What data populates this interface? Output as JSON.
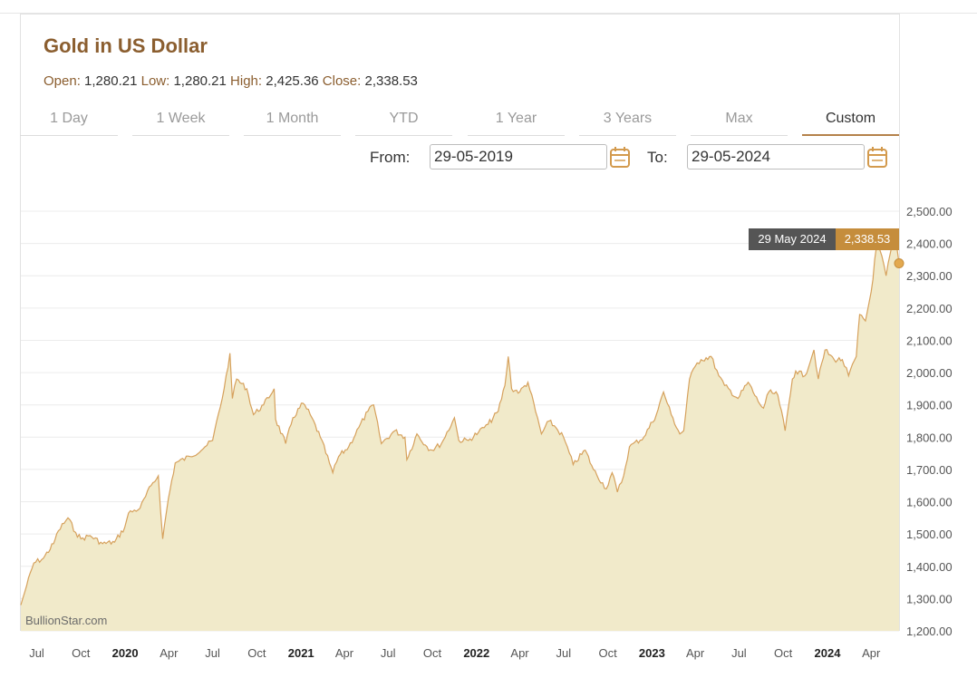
{
  "header": {
    "title": "Gold in US Dollar",
    "open_label": "Open:",
    "open": "1,280.21",
    "low_label": "Low:",
    "low": "1,280.21",
    "high_label": "High:",
    "high": "2,425.36",
    "close_label": "Close:",
    "close": "2,338.53"
  },
  "tabs": [
    {
      "label": "1 Day"
    },
    {
      "label": "1 Week"
    },
    {
      "label": "1 Month"
    },
    {
      "label": "YTD"
    },
    {
      "label": "1 Year"
    },
    {
      "label": "3 Years"
    },
    {
      "label": "Max"
    },
    {
      "label": "Custom",
      "active": true
    }
  ],
  "range": {
    "from_label": "From:",
    "from_value": "29-05-2019",
    "to_label": "To:",
    "to_value": "29-05-2024"
  },
  "tooltip": {
    "date": "29 May 2024",
    "value": "2,338.53"
  },
  "brand": "BullionStar.com",
  "colors": {
    "accent": "#b5824a",
    "line": "#d6a15c",
    "area": "#f1eaca",
    "title": "#8b5e2f"
  },
  "chart_data": {
    "type": "area",
    "title": "Gold in US Dollar",
    "ylim": [
      1200,
      2500
    ],
    "y_ticks": [
      "1,200.00",
      "1,300.00",
      "1,400.00",
      "1,500.00",
      "1,600.00",
      "1,700.00",
      "1,800.00",
      "1,900.00",
      "2,000.00",
      "2,100.00",
      "2,200.00",
      "2,300.00",
      "2,400.00",
      "2,500.00"
    ],
    "x_range": [
      "2019-05-29",
      "2024-05-29"
    ],
    "x_ticks": [
      {
        "date": "2019-07-01",
        "label": "Jul",
        "bold": false
      },
      {
        "date": "2019-10-01",
        "label": "Oct",
        "bold": false
      },
      {
        "date": "2020-01-01",
        "label": "2020",
        "bold": true
      },
      {
        "date": "2020-04-01",
        "label": "Apr",
        "bold": false
      },
      {
        "date": "2020-07-01",
        "label": "Jul",
        "bold": false
      },
      {
        "date": "2020-10-01",
        "label": "Oct",
        "bold": false
      },
      {
        "date": "2021-01-01",
        "label": "2021",
        "bold": true
      },
      {
        "date": "2021-04-01",
        "label": "Apr",
        "bold": false
      },
      {
        "date": "2021-07-01",
        "label": "Jul",
        "bold": false
      },
      {
        "date": "2021-10-01",
        "label": "Oct",
        "bold": false
      },
      {
        "date": "2022-01-01",
        "label": "2022",
        "bold": true
      },
      {
        "date": "2022-04-01",
        "label": "Apr",
        "bold": false
      },
      {
        "date": "2022-07-01",
        "label": "Jul",
        "bold": false
      },
      {
        "date": "2022-10-01",
        "label": "Oct",
        "bold": false
      },
      {
        "date": "2023-01-01",
        "label": "2023",
        "bold": true
      },
      {
        "date": "2023-04-01",
        "label": "Apr",
        "bold": false
      },
      {
        "date": "2023-07-01",
        "label": "Jul",
        "bold": false
      },
      {
        "date": "2023-10-01",
        "label": "Oct",
        "bold": false
      },
      {
        "date": "2024-01-01",
        "label": "2024",
        "bold": true
      },
      {
        "date": "2024-04-01",
        "label": "Apr",
        "bold": false
      }
    ],
    "grid": true,
    "series": [
      {
        "x": [
          "2019-05-29",
          "2019-06-10",
          "2019-06-25",
          "2019-07-15",
          "2019-08-05",
          "2019-08-15",
          "2019-09-04",
          "2019-09-20",
          "2019-10-01",
          "2019-10-20",
          "2019-11-15",
          "2019-12-10",
          "2019-12-31",
          "2020-01-08",
          "2020-02-01",
          "2020-02-24",
          "2020-03-10",
          "2020-03-19",
          "2020-03-31",
          "2020-04-14",
          "2020-05-15",
          "2020-06-15",
          "2020-07-01",
          "2020-07-25",
          "2020-08-06",
          "2020-08-11",
          "2020-08-20",
          "2020-09-10",
          "2020-09-24",
          "2020-10-15",
          "2020-11-06",
          "2020-11-09",
          "2020-11-30",
          "2020-12-15",
          "2021-01-05",
          "2021-01-20",
          "2021-02-10",
          "2021-03-01",
          "2021-03-08",
          "2021-03-20",
          "2021-04-10",
          "2021-05-01",
          "2021-05-20",
          "2021-06-01",
          "2021-06-17",
          "2021-07-15",
          "2021-08-05",
          "2021-08-09",
          "2021-08-30",
          "2021-09-20",
          "2021-09-30",
          "2021-10-20",
          "2021-11-16",
          "2021-11-25",
          "2021-12-15",
          "2022-01-05",
          "2022-01-25",
          "2022-02-15",
          "2022-03-01",
          "2022-03-08",
          "2022-03-15",
          "2022-04-01",
          "2022-04-18",
          "2022-05-16",
          "2022-06-01",
          "2022-06-15",
          "2022-07-01",
          "2022-07-21",
          "2022-08-15",
          "2022-09-01",
          "2022-09-28",
          "2022-10-10",
          "2022-10-21",
          "2022-11-03",
          "2022-11-15",
          "2022-12-15",
          "2023-01-10",
          "2023-01-25",
          "2023-02-10",
          "2023-02-28",
          "2023-03-08",
          "2023-03-20",
          "2023-04-05",
          "2023-04-13",
          "2023-05-04",
          "2023-05-20",
          "2023-06-01",
          "2023-06-29",
          "2023-07-20",
          "2023-08-10",
          "2023-08-21",
          "2023-09-01",
          "2023-09-20",
          "2023-10-05",
          "2023-10-20",
          "2023-10-27",
          "2023-11-15",
          "2023-12-04",
          "2023-12-13",
          "2023-12-27",
          "2024-01-15",
          "2024-02-01",
          "2024-02-14",
          "2024-03-01",
          "2024-03-08",
          "2024-03-20",
          "2024-04-01",
          "2024-04-12",
          "2024-04-19",
          "2024-05-02",
          "2024-05-15",
          "2024-05-20",
          "2024-05-29"
        ],
        "values": [
          1280,
          1340,
          1410,
          1425,
          1470,
          1510,
          1550,
          1505,
          1485,
          1495,
          1470,
          1475,
          1520,
          1565,
          1580,
          1650,
          1680,
          1485,
          1610,
          1720,
          1740,
          1770,
          1790,
          1950,
          2060,
          1920,
          1980,
          1950,
          1870,
          1900,
          1950,
          1855,
          1780,
          1860,
          1905,
          1870,
          1800,
          1720,
          1690,
          1740,
          1770,
          1830,
          1880,
          1900,
          1780,
          1820,
          1800,
          1730,
          1810,
          1770,
          1760,
          1780,
          1860,
          1790,
          1790,
          1815,
          1840,
          1880,
          1960,
          2050,
          1950,
          1940,
          1970,
          1810,
          1850,
          1830,
          1800,
          1715,
          1760,
          1700,
          1640,
          1690,
          1630,
          1680,
          1770,
          1800,
          1870,
          1940,
          1870,
          1810,
          1820,
          1980,
          2030,
          2040,
          2050,
          1990,
          1960,
          1920,
          1970,
          1910,
          1890,
          1940,
          1930,
          1820,
          1980,
          2005,
          1990,
          2070,
          1980,
          2070,
          2040,
          2040,
          1990,
          2050,
          2180,
          2160,
          2250,
          2390,
          2380,
          2300,
          2400,
          2425,
          2338.53
        ]
      }
    ]
  }
}
